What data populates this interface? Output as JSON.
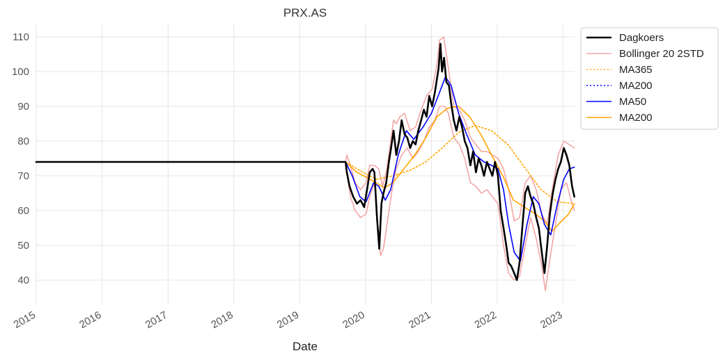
{
  "chart_data": {
    "type": "line",
    "title": "PRX.AS",
    "xlabel": "Date",
    "ylabel": "",
    "xlim": [
      "2015-01-01",
      "2023-03-06"
    ],
    "ylim": [
      33,
      114
    ],
    "x_ticks": [
      "2015",
      "2016",
      "2017",
      "2018",
      "2019",
      "2020",
      "2021",
      "2022",
      "2023"
    ],
    "y_ticks": [
      40,
      50,
      60,
      70,
      80,
      90,
      100,
      110
    ],
    "grid": true,
    "legend_position": "outside top-right",
    "series": [
      {
        "name": "Dagkoers",
        "color": "#000000",
        "style": "solid",
        "points": [
          [
            "2015-01-01",
            74
          ],
          [
            "2019-09-13",
            74
          ],
          [
            "2019-09-20",
            71
          ],
          [
            "2019-10-05",
            67
          ],
          [
            "2019-10-25",
            64
          ],
          [
            "2019-11-15",
            62
          ],
          [
            "2019-12-05",
            63
          ],
          [
            "2019-12-25",
            61
          ],
          [
            "2020-01-10",
            66
          ],
          [
            "2020-01-25",
            71
          ],
          [
            "2020-02-10",
            72
          ],
          [
            "2020-02-20",
            71
          ],
          [
            "2020-03-05",
            58
          ],
          [
            "2020-03-18",
            49
          ],
          [
            "2020-03-30",
            62
          ],
          [
            "2020-04-10",
            65
          ],
          [
            "2020-04-25",
            68
          ],
          [
            "2020-05-10",
            74
          ],
          [
            "2020-05-22",
            78
          ],
          [
            "2020-06-05",
            83
          ],
          [
            "2020-06-20",
            76
          ],
          [
            "2020-07-05",
            80
          ],
          [
            "2020-07-20",
            86
          ],
          [
            "2020-08-05",
            82
          ],
          [
            "2020-08-20",
            81
          ],
          [
            "2020-09-05",
            78
          ],
          [
            "2020-09-20",
            80
          ],
          [
            "2020-10-05",
            79
          ],
          [
            "2020-10-20",
            83
          ],
          [
            "2020-11-05",
            86
          ],
          [
            "2020-11-20",
            89
          ],
          [
            "2020-12-05",
            87
          ],
          [
            "2020-12-20",
            93
          ],
          [
            "2021-01-05",
            90
          ],
          [
            "2021-01-20",
            94
          ],
          [
            "2021-02-01",
            98
          ],
          [
            "2021-02-10",
            101
          ],
          [
            "2021-02-20",
            108
          ],
          [
            "2021-03-01",
            100
          ],
          [
            "2021-03-12",
            104
          ],
          [
            "2021-03-25",
            97
          ],
          [
            "2021-04-08",
            96
          ],
          [
            "2021-04-20",
            91
          ],
          [
            "2021-05-05",
            86
          ],
          [
            "2021-05-20",
            83
          ],
          [
            "2021-06-05",
            87
          ],
          [
            "2021-06-20",
            84
          ],
          [
            "2021-07-05",
            80
          ],
          [
            "2021-07-20",
            78
          ],
          [
            "2021-08-05",
            73
          ],
          [
            "2021-08-20",
            77
          ],
          [
            "2021-09-05",
            71
          ],
          [
            "2021-09-20",
            75
          ],
          [
            "2021-10-05",
            73
          ],
          [
            "2021-10-20",
            70
          ],
          [
            "2021-11-05",
            74
          ],
          [
            "2021-11-20",
            72
          ],
          [
            "2021-12-05",
            70
          ],
          [
            "2021-12-20",
            74
          ],
          [
            "2022-01-05",
            70
          ],
          [
            "2022-01-20",
            60
          ],
          [
            "2022-02-05",
            55
          ],
          [
            "2022-02-20",
            50
          ],
          [
            "2022-03-05",
            45
          ],
          [
            "2022-03-20",
            44
          ],
          [
            "2022-04-05",
            42
          ],
          [
            "2022-04-20",
            40
          ],
          [
            "2022-05-05",
            45
          ],
          [
            "2022-05-20",
            55
          ],
          [
            "2022-06-05",
            65
          ],
          [
            "2022-06-20",
            67
          ],
          [
            "2022-07-05",
            64
          ],
          [
            "2022-07-20",
            62
          ],
          [
            "2022-08-05",
            58
          ],
          [
            "2022-08-20",
            55
          ],
          [
            "2022-09-05",
            48
          ],
          [
            "2022-09-20",
            42
          ],
          [
            "2022-10-05",
            50
          ],
          [
            "2022-10-20",
            59
          ],
          [
            "2022-11-05",
            65
          ],
          [
            "2022-11-20",
            69
          ],
          [
            "2022-12-05",
            72
          ],
          [
            "2022-12-20",
            74
          ],
          [
            "2023-01-05",
            78
          ],
          [
            "2023-01-20",
            76
          ],
          [
            "2023-02-05",
            73
          ],
          [
            "2023-02-20",
            67
          ],
          [
            "2023-03-05",
            64
          ]
        ]
      },
      {
        "name": "Bollinger 20 2STD",
        "color": "#f4a6a6",
        "style": "solid",
        "bands": {
          "upper": [
            [
              "2015-01-01",
              74
            ],
            [
              "2019-09-13",
              74
            ],
            [
              "2019-09-20",
              76
            ],
            [
              "2019-10-10",
              73
            ],
            [
              "2019-11-05",
              68
            ],
            [
              "2019-12-05",
              66
            ],
            [
              "2020-01-05",
              68
            ],
            [
              "2020-01-25",
              73
            ],
            [
              "2020-02-20",
              73
            ],
            [
              "2020-03-15",
              72
            ],
            [
              "2020-04-05",
              67
            ],
            [
              "2020-04-25",
              71
            ],
            [
              "2020-05-15",
              78
            ],
            [
              "2020-06-05",
              86
            ],
            [
              "2020-06-20",
              85
            ],
            [
              "2020-07-10",
              87
            ],
            [
              "2020-08-05",
              88
            ],
            [
              "2020-09-05",
              83
            ],
            [
              "2020-10-05",
              84
            ],
            [
              "2020-11-05",
              89
            ],
            [
              "2020-12-05",
              93
            ],
            [
              "2021-01-05",
              95
            ],
            [
              "2021-02-01",
              102
            ],
            [
              "2021-02-15",
              109
            ],
            [
              "2021-03-10",
              110
            ],
            [
              "2021-04-05",
              101
            ],
            [
              "2021-05-05",
              90
            ],
            [
              "2021-06-05",
              89
            ],
            [
              "2021-07-05",
              86
            ],
            [
              "2021-08-05",
              81
            ],
            [
              "2021-09-05",
              79
            ],
            [
              "2021-10-05",
              77
            ],
            [
              "2021-11-05",
              77
            ],
            [
              "2021-12-05",
              76
            ],
            [
              "2022-01-05",
              75
            ],
            [
              "2022-02-05",
              72
            ],
            [
              "2022-03-05",
              66
            ],
            [
              "2022-04-05",
              57
            ],
            [
              "2022-05-05",
              58
            ],
            [
              "2022-06-05",
              68
            ],
            [
              "2022-07-05",
              70
            ],
            [
              "2022-08-05",
              66
            ],
            [
              "2022-09-05",
              59
            ],
            [
              "2022-10-05",
              56
            ],
            [
              "2022-11-05",
              67
            ],
            [
              "2022-12-05",
              76
            ],
            [
              "2023-01-05",
              80
            ],
            [
              "2023-02-05",
              79
            ],
            [
              "2023-03-05",
              78
            ]
          ],
          "lower": [
            [
              "2015-01-01",
              74
            ],
            [
              "2019-09-13",
              74
            ],
            [
              "2019-09-20",
              71
            ],
            [
              "2019-10-10",
              64
            ],
            [
              "2019-11-05",
              60
            ],
            [
              "2019-12-05",
              58
            ],
            [
              "2020-01-05",
              59
            ],
            [
              "2020-01-25",
              64
            ],
            [
              "2020-02-20",
              68
            ],
            [
              "2020-03-15",
              52
            ],
            [
              "2020-03-25",
              47
            ],
            [
              "2020-04-10",
              49
            ],
            [
              "2020-05-05",
              58
            ],
            [
              "2020-05-25",
              65
            ],
            [
              "2020-06-20",
              72
            ],
            [
              "2020-07-20",
              76
            ],
            [
              "2020-08-20",
              78
            ],
            [
              "2020-09-20",
              75
            ],
            [
              "2020-10-20",
              77
            ],
            [
              "2020-11-20",
              80
            ],
            [
              "2020-12-20",
              84
            ],
            [
              "2021-01-20",
              86
            ],
            [
              "2021-02-15",
              90
            ],
            [
              "2021-03-15",
              90
            ],
            [
              "2021-04-05",
              88
            ],
            [
              "2021-05-05",
              81
            ],
            [
              "2021-06-05",
              79
            ],
            [
              "2021-07-05",
              75
            ],
            [
              "2021-08-05",
              68
            ],
            [
              "2021-09-05",
              67
            ],
            [
              "2021-10-05",
              65
            ],
            [
              "2021-11-05",
              66
            ],
            [
              "2021-12-05",
              64
            ],
            [
              "2022-01-05",
              62
            ],
            [
              "2022-02-05",
              50
            ],
            [
              "2022-03-05",
              42
            ],
            [
              "2022-04-05",
              40
            ],
            [
              "2022-05-05",
              41
            ],
            [
              "2022-06-05",
              50
            ],
            [
              "2022-07-05",
              58
            ],
            [
              "2022-08-05",
              52
            ],
            [
              "2022-09-05",
              44
            ],
            [
              "2022-09-25",
              37
            ],
            [
              "2022-10-20",
              46
            ],
            [
              "2022-11-20",
              56
            ],
            [
              "2022-12-20",
              66
            ],
            [
              "2023-01-20",
              68
            ],
            [
              "2023-02-20",
              62
            ],
            [
              "2023-03-05",
              60
            ]
          ]
        }
      },
      {
        "name": "MA365",
        "color": "#ffa500",
        "style": "dotted",
        "points": [
          [
            "2015-01-01",
            74
          ],
          [
            "2019-09-13",
            74
          ],
          [
            "2019-12-01",
            71.5
          ],
          [
            "2020-03-01",
            69
          ],
          [
            "2020-06-01",
            70
          ],
          [
            "2020-09-01",
            71.5
          ],
          [
            "2020-12-01",
            74
          ],
          [
            "2021-03-01",
            78
          ],
          [
            "2021-06-01",
            82.5
          ],
          [
            "2021-09-01",
            84.5
          ],
          [
            "2021-12-01",
            83
          ],
          [
            "2022-03-01",
            79
          ],
          [
            "2022-06-01",
            72.5
          ],
          [
            "2022-09-01",
            66
          ],
          [
            "2022-12-01",
            62.5
          ],
          [
            "2023-03-05",
            62
          ]
        ]
      },
      {
        "name": "MA200",
        "color": "#0000ff",
        "style": "dotted",
        "points": [
          [
            "2015-01-01",
            74
          ],
          [
            "2015-10-01",
            74
          ]
        ]
      },
      {
        "name": "MA50",
        "color": "#0000ff",
        "style": "solid",
        "points": [
          [
            "2015-01-01",
            74
          ],
          [
            "2019-09-13",
            74
          ],
          [
            "2019-10-20",
            70
          ],
          [
            "2019-12-01",
            64
          ],
          [
            "2020-01-05",
            62.5
          ],
          [
            "2020-02-15",
            68
          ],
          [
            "2020-03-15",
            67
          ],
          [
            "2020-04-20",
            63
          ],
          [
            "2020-05-20",
            66
          ],
          [
            "2020-07-01",
            76
          ],
          [
            "2020-08-15",
            83
          ],
          [
            "2020-09-25",
            80.5
          ],
          [
            "2020-11-15",
            84
          ],
          [
            "2021-01-01",
            88
          ],
          [
            "2021-02-15",
            94
          ],
          [
            "2021-03-20",
            98.5
          ],
          [
            "2021-04-20",
            96
          ],
          [
            "2021-06-01",
            88
          ],
          [
            "2021-07-15",
            82
          ],
          [
            "2021-09-01",
            76
          ],
          [
            "2021-10-20",
            74
          ],
          [
            "2021-12-01",
            73
          ],
          [
            "2022-01-05",
            72
          ],
          [
            "2022-02-05",
            66
          ],
          [
            "2022-03-05",
            56
          ],
          [
            "2022-04-05",
            48
          ],
          [
            "2022-05-10",
            45.5
          ],
          [
            "2022-06-15",
            56
          ],
          [
            "2022-07-20",
            64
          ],
          [
            "2022-08-20",
            62
          ],
          [
            "2022-09-20",
            56
          ],
          [
            "2022-10-25",
            53
          ],
          [
            "2022-12-01",
            62
          ],
          [
            "2023-01-05",
            69
          ],
          [
            "2023-02-05",
            72
          ],
          [
            "2023-03-05",
            72.5
          ]
        ]
      },
      {
        "name": "MA200",
        "color": "#ffa500",
        "style": "solid",
        "points": [
          [
            "2015-01-01",
            74
          ],
          [
            "2019-09-13",
            74
          ],
          [
            "2019-11-15",
            71
          ],
          [
            "2020-01-10",
            69.5
          ],
          [
            "2020-03-01",
            68
          ],
          [
            "2020-04-15",
            66.5
          ],
          [
            "2020-06-01",
            68
          ],
          [
            "2020-08-01",
            72
          ],
          [
            "2020-10-01",
            76
          ],
          [
            "2020-12-01",
            81
          ],
          [
            "2021-02-01",
            87
          ],
          [
            "2021-04-01",
            89.5
          ],
          [
            "2021-06-01",
            90
          ],
          [
            "2021-08-01",
            87
          ],
          [
            "2021-10-01",
            82
          ],
          [
            "2021-12-01",
            76
          ],
          [
            "2022-02-01",
            70
          ],
          [
            "2022-04-01",
            63
          ],
          [
            "2022-06-01",
            61
          ],
          [
            "2022-08-01",
            59
          ],
          [
            "2022-09-20",
            57
          ],
          [
            "2022-11-01",
            54
          ],
          [
            "2022-12-15",
            56.5
          ],
          [
            "2023-02-01",
            59
          ],
          [
            "2023-03-05",
            62
          ]
        ]
      }
    ]
  }
}
